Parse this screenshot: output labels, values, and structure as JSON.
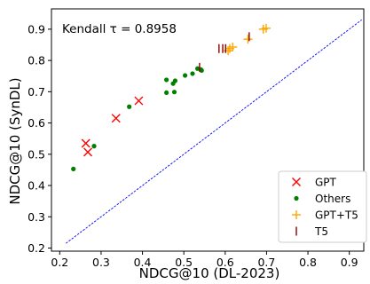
{
  "chart_data": {
    "type": "scatter",
    "title": "",
    "xlabel": "NDCG@10 (DL-2023)",
    "ylabel": "NDCG@10 (SynDL)",
    "xlim": [
      0.18,
      0.935
    ],
    "ylim": [
      0.19,
      0.965
    ],
    "xticks": [
      0.2,
      0.3,
      0.4,
      0.5,
      0.6,
      0.7,
      0.8,
      0.9
    ],
    "yticks": [
      0.2,
      0.3,
      0.4,
      0.5,
      0.6,
      0.7,
      0.8,
      0.9
    ],
    "xtick_labels": [
      "0.2",
      "0.3",
      "0.4",
      "0.5",
      "0.6",
      "0.7",
      "0.8",
      "0.9"
    ],
    "ytick_labels": [
      "0.2",
      "0.3",
      "0.4",
      "0.5",
      "0.6",
      "0.7",
      "0.8",
      "0.9"
    ],
    "grid": false,
    "annotation": "Kendall τ = 0.8958",
    "legend_position": "bottom-right",
    "reference_line": {
      "x": [
        0.215,
        0.93
      ],
      "y": [
        0.215,
        0.93
      ],
      "color": "#0000ff",
      "style": "dashed"
    },
    "series": [
      {
        "name": "GPT",
        "marker": "x",
        "color": "#ff0000",
        "points": [
          [
            0.263,
            0.535
          ],
          [
            0.268,
            0.507
          ],
          [
            0.336,
            0.615
          ],
          [
            0.391,
            0.671
          ]
        ]
      },
      {
        "name": "Others",
        "marker": "dot",
        "color": "#008000",
        "points": [
          [
            0.233,
            0.453
          ],
          [
            0.283,
            0.526
          ],
          [
            0.368,
            0.652
          ],
          [
            0.458,
            0.738
          ],
          [
            0.458,
            0.697
          ],
          [
            0.474,
            0.726
          ],
          [
            0.479,
            0.735
          ],
          [
            0.477,
            0.699
          ],
          [
            0.503,
            0.752
          ],
          [
            0.521,
            0.758
          ],
          [
            0.533,
            0.774
          ],
          [
            0.541,
            0.771
          ],
          [
            0.543,
            0.768
          ]
        ]
      },
      {
        "name": "GPT+T5",
        "marker": "plus",
        "color": "#ffa500",
        "points": [
          [
            0.607,
            0.831
          ],
          [
            0.611,
            0.838
          ],
          [
            0.618,
            0.843
          ],
          [
            0.655,
            0.868
          ],
          [
            0.692,
            0.9
          ],
          [
            0.699,
            0.903
          ]
        ]
      },
      {
        "name": "T5",
        "marker": "vline",
        "color": "#8b0000",
        "points": [
          [
            0.585,
            0.838
          ],
          [
            0.594,
            0.838
          ],
          [
            0.601,
            0.838
          ],
          [
            0.538,
            0.778
          ],
          [
            0.658,
            0.876
          ]
        ]
      }
    ]
  }
}
